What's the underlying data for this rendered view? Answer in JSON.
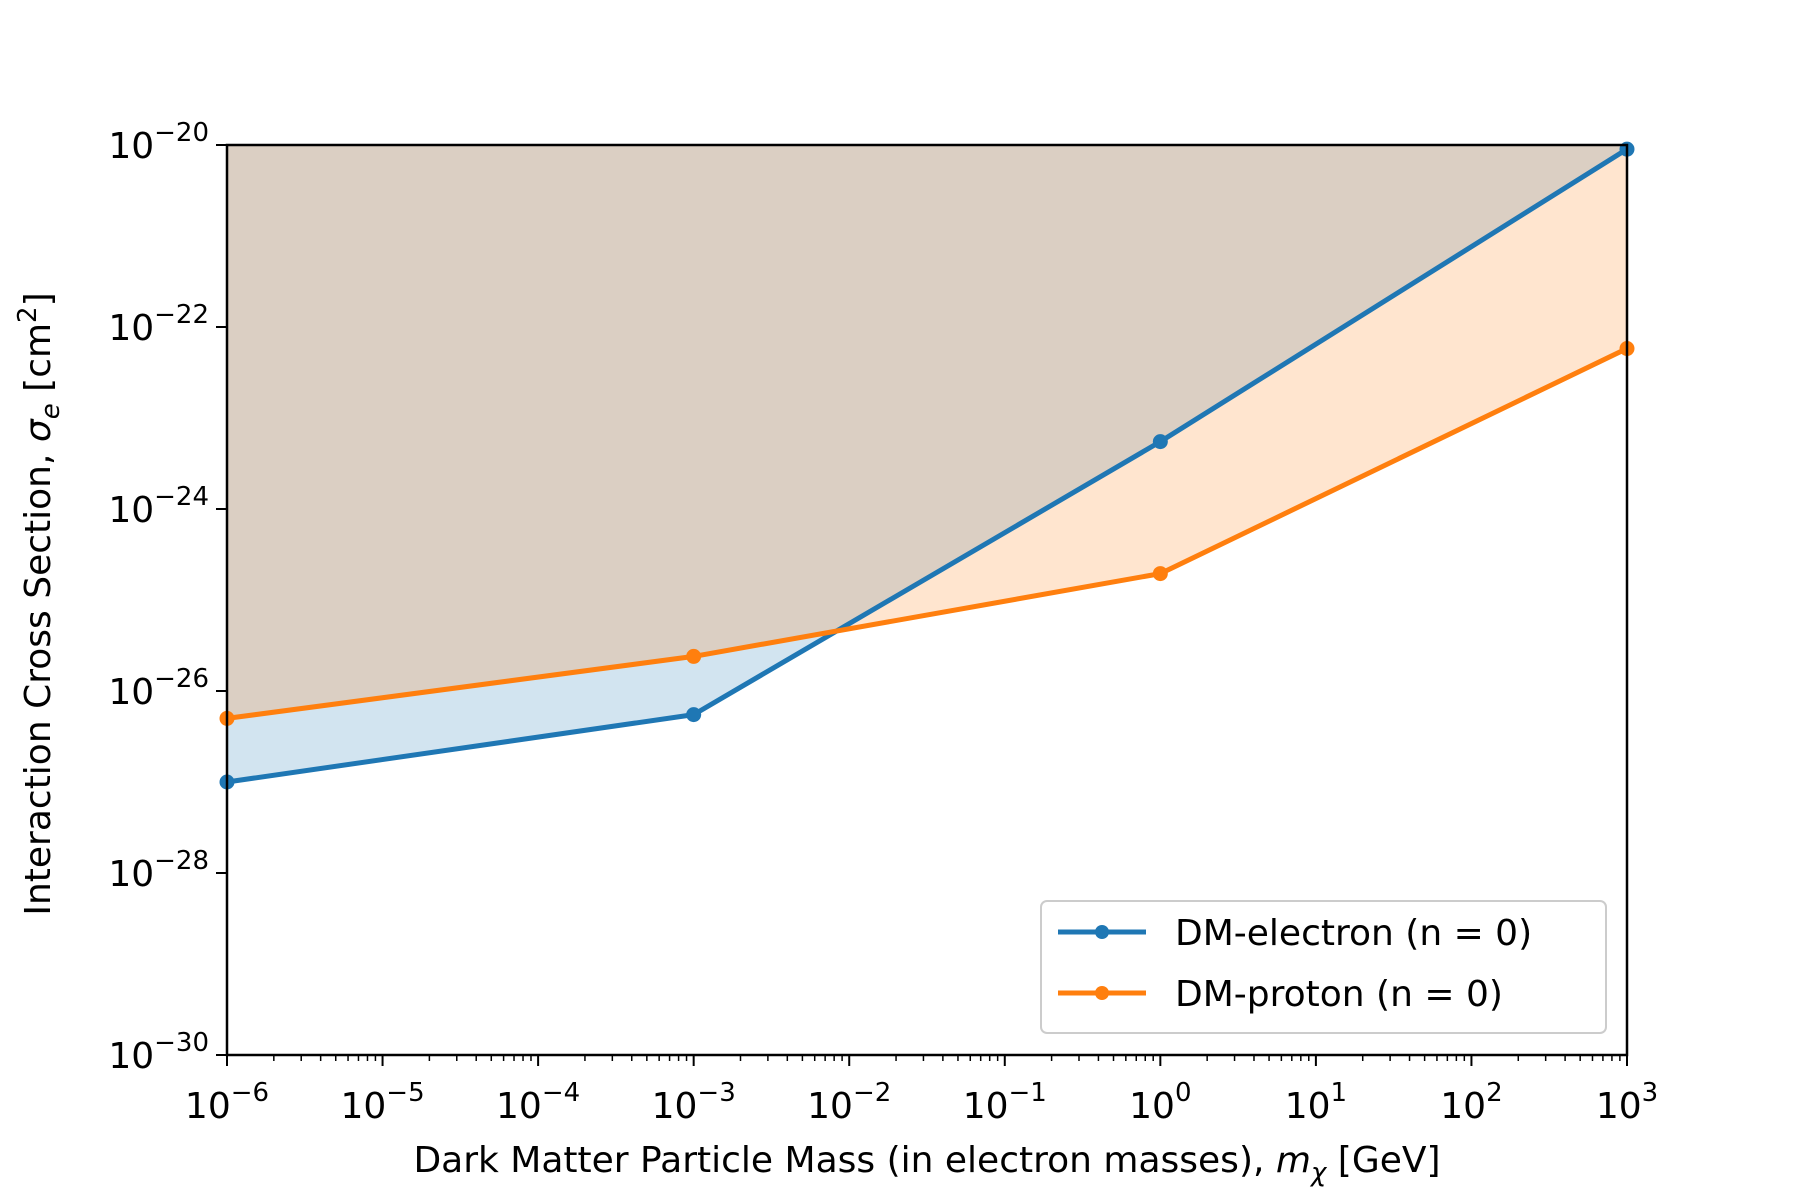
{
  "chart_data": {
    "type": "line",
    "x_scale": "log",
    "y_scale": "log",
    "xlim": [
      1e-06,
      1000
    ],
    "ylim": [
      1e-30,
      1e-20
    ],
    "xlabel": {
      "main": "Dark Matter Particle Mass (in electron masses), ",
      "sym": "m",
      "sub": "χ",
      "unit": " [GeV]"
    },
    "ylabel": {
      "main": "Interaction Cross Section, ",
      "sym": "σ",
      "sub": "e",
      "unit_pre": " [cm",
      "unit_sup": "2",
      "unit_post": "]"
    },
    "x_ticks": [
      {
        "value": 1e-06,
        "base": "10",
        "exp": "−6"
      },
      {
        "value": 1e-05,
        "base": "10",
        "exp": "−5"
      },
      {
        "value": 0.0001,
        "base": "10",
        "exp": "−4"
      },
      {
        "value": 0.001,
        "base": "10",
        "exp": "−3"
      },
      {
        "value": 0.01,
        "base": "10",
        "exp": "−2"
      },
      {
        "value": 0.1,
        "base": "10",
        "exp": "−1"
      },
      {
        "value": 1,
        "base": "10",
        "exp": "0"
      },
      {
        "value": 10,
        "base": "10",
        "exp": "1"
      },
      {
        "value": 100,
        "base": "10",
        "exp": "2"
      },
      {
        "value": 1000,
        "base": "10",
        "exp": "3"
      }
    ],
    "y_ticks": [
      {
        "value": 1e-30,
        "base": "10",
        "exp": "−30"
      },
      {
        "value": 1e-28,
        "base": "10",
        "exp": "−28"
      },
      {
        "value": 1e-26,
        "base": "10",
        "exp": "−26"
      },
      {
        "value": 1e-24,
        "base": "10",
        "exp": "−24"
      },
      {
        "value": 1e-22,
        "base": "10",
        "exp": "−22"
      },
      {
        "value": 1e-20,
        "base": "10",
        "exp": "−20"
      }
    ],
    "series": [
      {
        "name": "DM-electron (n = 0)",
        "color": "#1f77b4",
        "fill_color": "#1f77b4",
        "fill_opacity": 0.2,
        "fill_above": true,
        "x": [
          1e-06,
          0.001,
          1,
          1000
        ],
        "y": [
          1e-27,
          5.5e-27,
          5.5e-24,
          9e-21
        ]
      },
      {
        "name": "DM-proton (n = 0)",
        "color": "#ff7f0e",
        "fill_color": "#ff7f0e",
        "fill_opacity": 0.2,
        "fill_above": true,
        "x": [
          1e-06,
          0.001,
          1,
          1000
        ],
        "y": [
          5e-27,
          2.4e-26,
          1.95e-25,
          5.8e-23
        ]
      }
    ],
    "legend_position": "lower-right",
    "grid": false
  }
}
